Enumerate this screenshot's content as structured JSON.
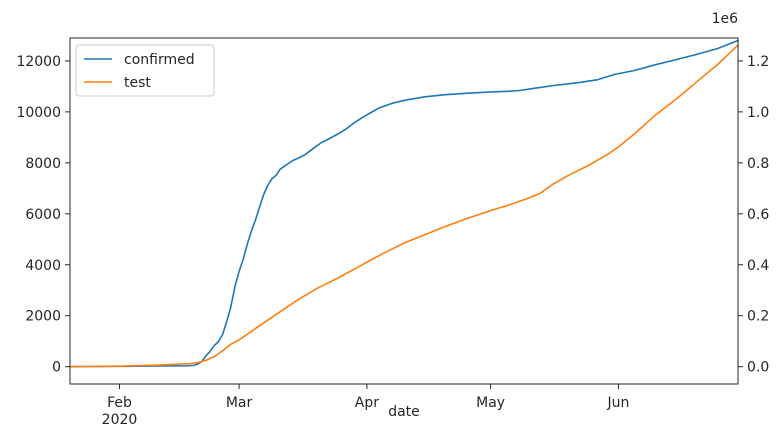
{
  "chart_data": {
    "type": "line",
    "xlabel": "date",
    "x_ticks": [
      {
        "date": "2020-02-01",
        "label": "Feb",
        "sublabel": "2020"
      },
      {
        "date": "2020-03-01",
        "label": "Mar"
      },
      {
        "date": "2020-04-01",
        "label": "Apr"
      },
      {
        "date": "2020-05-01",
        "label": "May"
      },
      {
        "date": "2020-06-01",
        "label": "Jun"
      }
    ],
    "xlim": [
      "2020-01-20",
      "2020-06-30"
    ],
    "y_left": {
      "ylim": [
        -680,
        12900
      ],
      "ticks": [
        0,
        2000,
        4000,
        6000,
        8000,
        10000,
        12000
      ],
      "tick_labels": [
        "0",
        "2000",
        "4000",
        "6000",
        "8000",
        "10000",
        "12000"
      ]
    },
    "y_right": {
      "ylim": [
        -0.068,
        1.29
      ],
      "ticks": [
        0.0,
        0.2,
        0.4,
        0.6,
        0.8,
        1.0,
        1.2
      ],
      "tick_labels": [
        "0.0",
        "0.2",
        "0.4",
        "0.6",
        "0.8",
        "1.0",
        "1.2"
      ],
      "offset_label": "1e6"
    },
    "legend_position": "upper-left",
    "series": [
      {
        "name": "confirmed",
        "axis": "left",
        "color": "#1f77b4",
        "points": [
          [
            "2020-01-20",
            1
          ],
          [
            "2020-02-01",
            12
          ],
          [
            "2020-02-10",
            28
          ],
          [
            "2020-02-17",
            31
          ],
          [
            "2020-02-19",
            51
          ],
          [
            "2020-02-20",
            104
          ],
          [
            "2020-02-21",
            204
          ],
          [
            "2020-02-22",
            433
          ],
          [
            "2020-02-23",
            602
          ],
          [
            "2020-02-24",
            833
          ],
          [
            "2020-02-25",
            977
          ],
          [
            "2020-02-26",
            1261
          ],
          [
            "2020-02-27",
            1766
          ],
          [
            "2020-02-28",
            2337
          ],
          [
            "2020-02-29",
            3150
          ],
          [
            "2020-03-01",
            3736
          ],
          [
            "2020-03-02",
            4212
          ],
          [
            "2020-03-03",
            4812
          ],
          [
            "2020-03-04",
            5328
          ],
          [
            "2020-03-05",
            5766
          ],
          [
            "2020-03-06",
            6284
          ],
          [
            "2020-03-07",
            6767
          ],
          [
            "2020-03-08",
            7134
          ],
          [
            "2020-03-09",
            7382
          ],
          [
            "2020-03-10",
            7513
          ],
          [
            "2020-03-11",
            7755
          ],
          [
            "2020-03-12",
            7869
          ],
          [
            "2020-03-13",
            7979
          ],
          [
            "2020-03-14",
            8086
          ],
          [
            "2020-03-15",
            8162
          ],
          [
            "2020-03-17",
            8320
          ],
          [
            "2020-03-19",
            8565
          ],
          [
            "2020-03-21",
            8799
          ],
          [
            "2020-03-23",
            8961
          ],
          [
            "2020-03-25",
            9137
          ],
          [
            "2020-03-27",
            9332
          ],
          [
            "2020-03-29",
            9583
          ],
          [
            "2020-03-31",
            9786
          ],
          [
            "2020-04-02",
            9976
          ],
          [
            "2020-04-04",
            10156
          ],
          [
            "2020-04-07",
            10331
          ],
          [
            "2020-04-10",
            10450
          ],
          [
            "2020-04-15",
            10591
          ],
          [
            "2020-04-20",
            10674
          ],
          [
            "2020-04-25",
            10728
          ],
          [
            "2020-04-30",
            10774
          ],
          [
            "2020-05-05",
            10806
          ],
          [
            "2020-05-08",
            10840
          ],
          [
            "2020-05-12",
            10936
          ],
          [
            "2020-05-17",
            11050
          ],
          [
            "2020-05-22",
            11142
          ],
          [
            "2020-05-27",
            11265
          ],
          [
            "2020-05-31",
            11468
          ],
          [
            "2020-06-05",
            11629
          ],
          [
            "2020-06-10",
            11852
          ],
          [
            "2020-06-15",
            12051
          ],
          [
            "2020-06-20",
            12257
          ],
          [
            "2020-06-25",
            12484
          ],
          [
            "2020-06-30",
            12800
          ]
        ]
      },
      {
        "name": "test",
        "axis": "right",
        "color": "#ff7f0e",
        "points": [
          [
            "2020-01-20",
            0.0
          ],
          [
            "2020-02-01",
            0.002
          ],
          [
            "2020-02-10",
            0.006
          ],
          [
            "2020-02-18",
            0.012
          ],
          [
            "2020-02-20",
            0.016
          ],
          [
            "2020-02-22",
            0.025
          ],
          [
            "2020-02-24",
            0.04
          ],
          [
            "2020-02-26",
            0.062
          ],
          [
            "2020-02-28",
            0.088
          ],
          [
            "2020-03-01",
            0.105
          ],
          [
            "2020-03-05",
            0.15
          ],
          [
            "2020-03-10",
            0.205
          ],
          [
            "2020-03-15",
            0.26
          ],
          [
            "2020-03-20",
            0.308
          ],
          [
            "2020-03-25",
            0.348
          ],
          [
            "2020-03-30",
            0.392
          ],
          [
            "2020-04-01",
            0.41
          ],
          [
            "2020-04-05",
            0.445
          ],
          [
            "2020-04-10",
            0.485
          ],
          [
            "2020-04-15",
            0.518
          ],
          [
            "2020-04-20",
            0.55
          ],
          [
            "2020-04-25",
            0.58
          ],
          [
            "2020-04-30",
            0.607
          ],
          [
            "2020-05-01",
            0.613
          ],
          [
            "2020-05-05",
            0.632
          ],
          [
            "2020-05-10",
            0.66
          ],
          [
            "2020-05-13",
            0.68
          ],
          [
            "2020-05-16",
            0.715
          ],
          [
            "2020-05-20",
            0.752
          ],
          [
            "2020-05-25",
            0.792
          ],
          [
            "2020-05-30",
            0.84
          ],
          [
            "2020-06-01",
            0.862
          ],
          [
            "2020-06-05",
            0.915
          ],
          [
            "2020-06-10",
            0.988
          ],
          [
            "2020-06-15",
            1.05
          ],
          [
            "2020-06-20",
            1.118
          ],
          [
            "2020-06-25",
            1.185
          ],
          [
            "2020-06-30",
            1.262
          ]
        ]
      }
    ]
  }
}
